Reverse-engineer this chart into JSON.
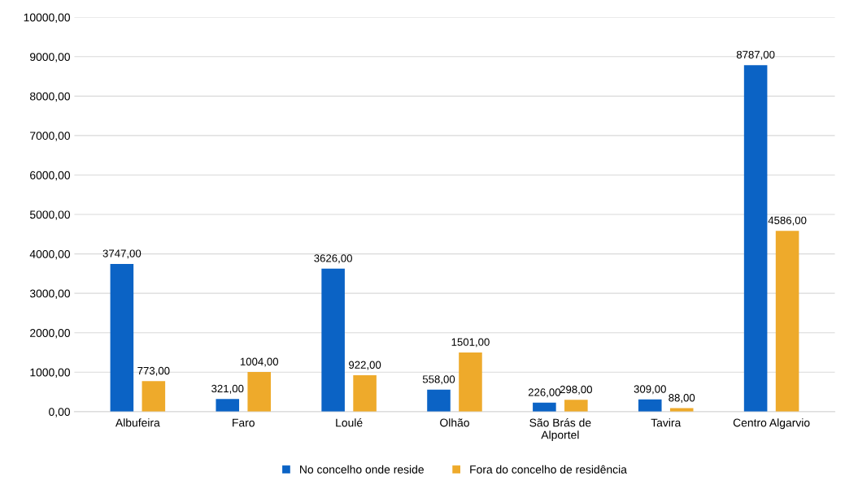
{
  "chart_data": {
    "type": "bar",
    "categories": [
      "Albufeira",
      "Faro",
      "Loulé",
      "Olhão",
      "São Brás de\nAlportel",
      "Tavira",
      "Centro Algarvio"
    ],
    "series": [
      {
        "name": "No concelho onde reside",
        "color": "#0b63c5",
        "values": [
          3747,
          321,
          3626,
          558,
          226,
          309,
          8787
        ],
        "value_labels": [
          "3747,00",
          "321,00",
          "3626,00",
          "558,00",
          "226,00",
          "309,00",
          "8787,00"
        ]
      },
      {
        "name": "Fora do concelho de residência",
        "color": "#eeaa2b",
        "values": [
          773,
          1004,
          922,
          1501,
          298,
          88,
          4586
        ],
        "value_labels": [
          "773,00",
          "1004,00",
          "922,00",
          "1501,00",
          "298,00",
          "88,00",
          "4586,00"
        ]
      }
    ],
    "ylim": [
      0,
      10000
    ],
    "yticks": [
      {
        "value": 0,
        "label": "0,00"
      },
      {
        "value": 1000,
        "label": "1000,00"
      },
      {
        "value": 2000,
        "label": "2000,00"
      },
      {
        "value": 3000,
        "label": "3000,00"
      },
      {
        "value": 4000,
        "label": "4000,00"
      },
      {
        "value": 5000,
        "label": "5000,00"
      },
      {
        "value": 6000,
        "label": "6000,00"
      },
      {
        "value": 7000,
        "label": "7000,00"
      },
      {
        "value": 8000,
        "label": "8000,00"
      },
      {
        "value": 9000,
        "label": "9000,00"
      },
      {
        "value": 10000,
        "label": "10000,00"
      }
    ],
    "grid": "y",
    "legend": "bottom"
  }
}
